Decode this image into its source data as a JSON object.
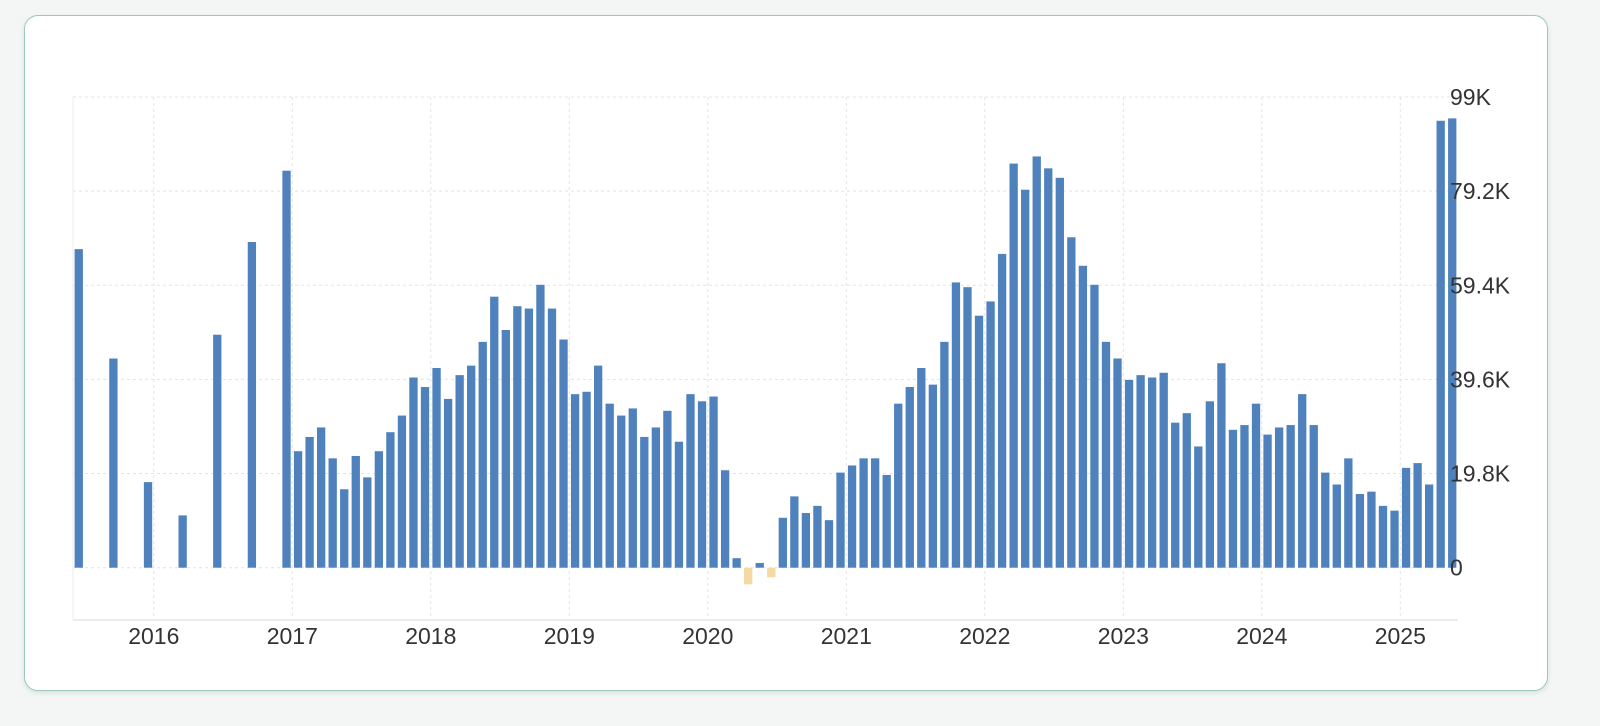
{
  "chart_data": {
    "type": "bar",
    "title": "",
    "xlabel": "",
    "ylabel": "",
    "ylim": [
      -11000,
      99000
    ],
    "y_axis_position": "right",
    "y_ticks": [
      0,
      19800,
      39600,
      59400,
      79200,
      99000
    ],
    "y_tick_labels": [
      "0",
      "19.8K",
      "39.6K",
      "59.4K",
      "79.2K",
      "99K"
    ],
    "x_axis_type": "date",
    "x_range": [
      "2015-06",
      "2025-06"
    ],
    "x_ticks": [
      "2016-01",
      "2017-01",
      "2018-01",
      "2019-01",
      "2020-01",
      "2021-01",
      "2022-01",
      "2023-01",
      "2024-01",
      "2025-01"
    ],
    "x_tick_labels": [
      "2016",
      "2017",
      "2018",
      "2019",
      "2020",
      "2021",
      "2022",
      "2023",
      "2024",
      "2025"
    ],
    "grid": true,
    "legend": "none",
    "positive_color": "#4f81bd",
    "negative_color": "#f5d9a5",
    "series": [
      {
        "x": [
          "2015-06",
          "2015-09",
          "2015-12",
          "2016-03",
          "2016-06",
          "2016-09",
          "2016-12",
          "2017-01",
          "2017-02",
          "2017-03",
          "2017-04",
          "2017-05",
          "2017-06",
          "2017-07",
          "2017-08",
          "2017-09",
          "2017-10",
          "2017-11",
          "2017-12",
          "2018-01",
          "2018-02",
          "2018-03",
          "2018-04",
          "2018-05",
          "2018-06",
          "2018-07",
          "2018-08",
          "2018-09",
          "2018-10",
          "2018-11",
          "2018-12",
          "2019-01",
          "2019-02",
          "2019-03",
          "2019-04",
          "2019-05",
          "2019-06",
          "2019-07",
          "2019-08",
          "2019-09",
          "2019-10",
          "2019-11",
          "2019-12",
          "2020-01",
          "2020-02",
          "2020-03",
          "2020-04",
          "2020-05",
          "2020-06",
          "2020-07",
          "2020-08",
          "2020-09",
          "2020-10",
          "2020-11",
          "2020-12",
          "2021-01",
          "2021-02",
          "2021-03",
          "2021-04",
          "2021-05",
          "2021-06",
          "2021-07",
          "2021-08",
          "2021-09",
          "2021-10",
          "2021-11",
          "2021-12",
          "2022-01",
          "2022-02",
          "2022-03",
          "2022-04",
          "2022-05",
          "2022-06",
          "2022-07",
          "2022-08",
          "2022-09",
          "2022-10",
          "2022-11",
          "2022-12",
          "2023-01",
          "2023-02",
          "2023-03",
          "2023-04",
          "2023-05",
          "2023-06",
          "2023-07",
          "2023-08",
          "2023-09",
          "2023-10",
          "2023-11",
          "2023-12",
          "2024-01",
          "2024-02",
          "2024-03",
          "2024-04",
          "2024-05",
          "2024-06",
          "2024-07",
          "2024-08",
          "2024-09",
          "2024-10",
          "2024-11",
          "2024-12",
          "2025-01",
          "2025-02",
          "2025-03",
          "2025-04",
          "2025-05"
        ],
        "values": [
          67000,
          44000,
          18000,
          11000,
          49000,
          68500,
          83500,
          24500,
          27500,
          29500,
          23000,
          16500,
          23500,
          19000,
          24500,
          28500,
          32000,
          40000,
          38000,
          42000,
          35500,
          40500,
          42500,
          47500,
          57000,
          50000,
          55000,
          54500,
          59500,
          54500,
          48000,
          36500,
          37000,
          42500,
          34500,
          32000,
          33500,
          27500,
          29500,
          33000,
          26500,
          36500,
          35000,
          36000,
          20500,
          2000,
          -3500,
          1000,
          -2000,
          10500,
          15000,
          11500,
          13000,
          10000,
          20000,
          21500,
          23000,
          23000,
          19500,
          34500,
          38000,
          42000,
          38500,
          47500,
          60000,
          59000,
          53000,
          56000,
          66000,
          85000,
          79500,
          86500,
          84000,
          82000,
          69500,
          63500,
          59500,
          47500,
          44000,
          39500,
          40500,
          40000,
          41000,
          30500,
          32500,
          25500,
          35000,
          43000,
          29000,
          30000,
          34500,
          28000,
          29500,
          30000,
          36500,
          30000,
          20000,
          17500,
          23000,
          15500,
          16000,
          13000,
          12000,
          21000,
          22000,
          17500,
          94000,
          94500
        ]
      }
    ]
  }
}
